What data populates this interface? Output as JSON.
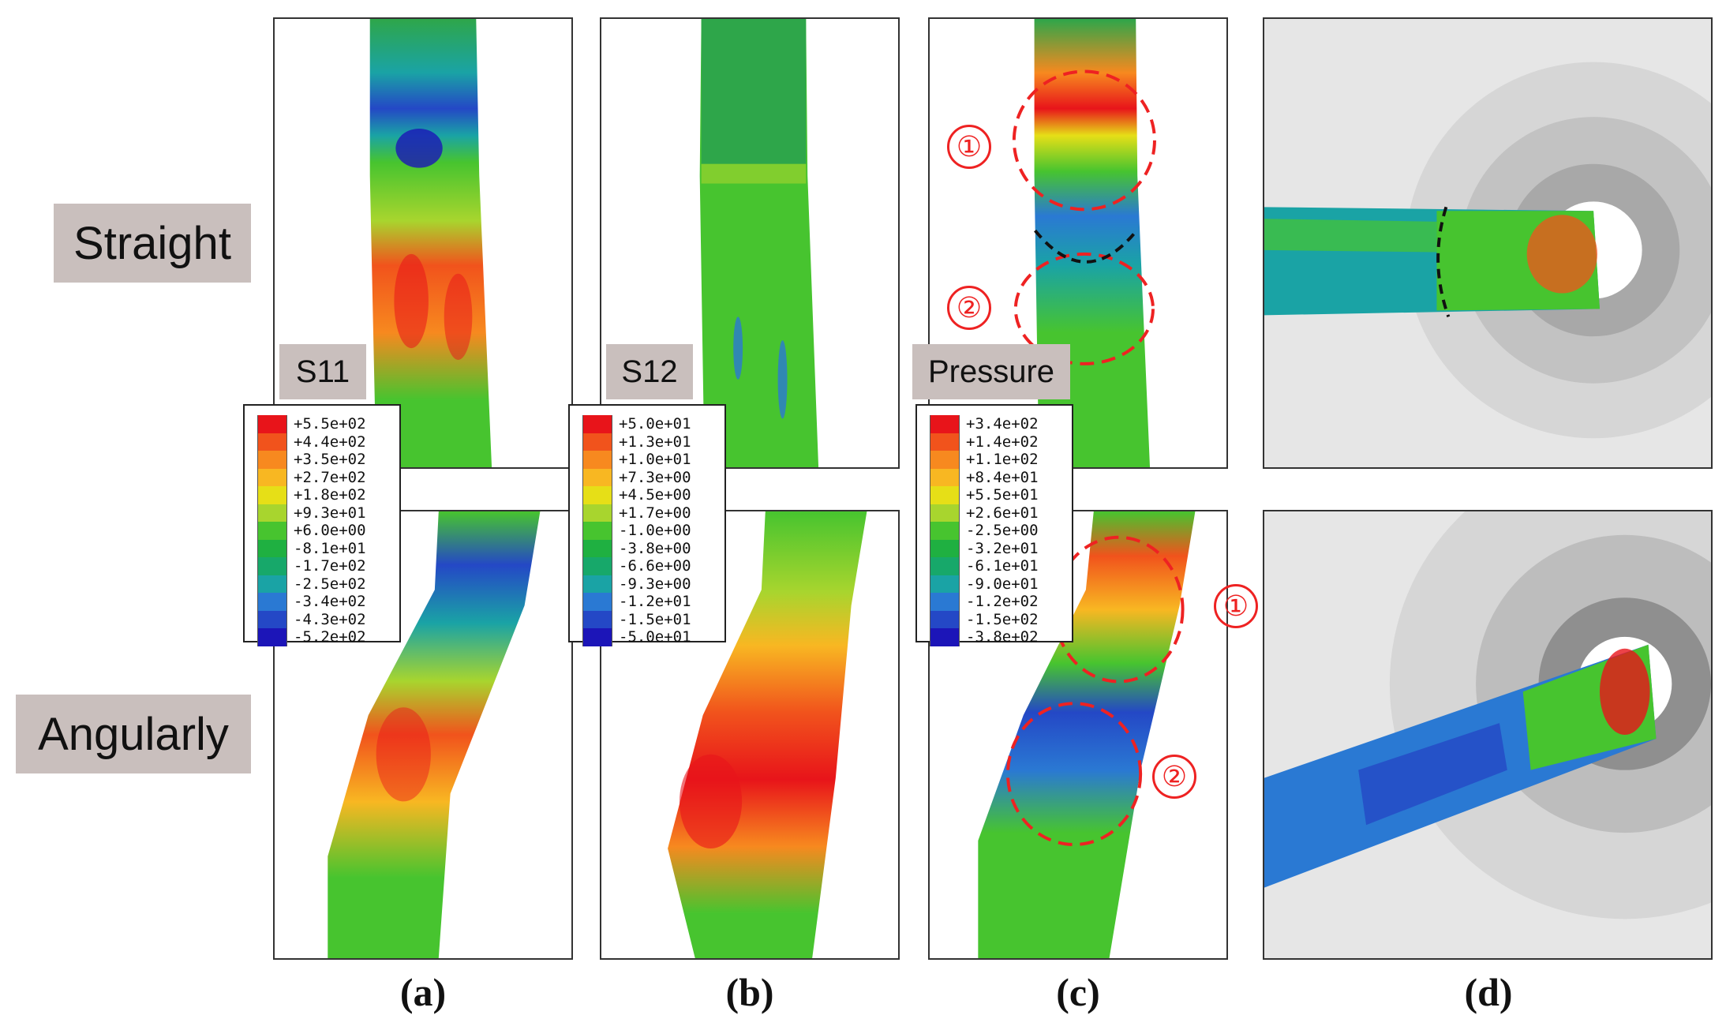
{
  "row_labels": {
    "straight": "Straight",
    "angular": "Angularly"
  },
  "sub_labels": {
    "a": "(a)",
    "b": "(b)",
    "c": "(c)",
    "d": "(d)"
  },
  "legends": {
    "s11": {
      "title": "S11",
      "values": [
        "+5.5e+02",
        "+4.4e+02",
        "+3.5e+02",
        "+2.7e+02",
        "+1.8e+02",
        "+9.3e+01",
        "+6.0e+00",
        "-8.1e+01",
        "-1.7e+02",
        "-2.5e+02",
        "-3.4e+02",
        "-4.3e+02",
        "-5.2e+02"
      ]
    },
    "s12": {
      "title": "S12",
      "values": [
        "+5.0e+01",
        "+1.3e+01",
        "+1.0e+01",
        "+7.3e+00",
        "+4.5e+00",
        "+1.7e+00",
        "-1.0e+00",
        "-3.8e+00",
        "-6.6e+00",
        "-9.3e+00",
        "-1.2e+01",
        "-1.5e+01",
        "-5.0e+01"
      ]
    },
    "pressure": {
      "title": "Pressure",
      "values": [
        "+3.4e+02",
        "+1.4e+02",
        "+1.1e+02",
        "+8.4e+01",
        "+5.5e+01",
        "+2.6e+01",
        "-2.5e+00",
        "-3.2e+01",
        "-6.1e+01",
        "-9.0e+01",
        "-1.2e+02",
        "-1.5e+02",
        "-3.8e+02"
      ]
    }
  },
  "colorscale": [
    "#e8141a",
    "#f1531c",
    "#f7891f",
    "#f8b722",
    "#e6df17",
    "#a8d52e",
    "#47c42f",
    "#1fb041",
    "#17a86a",
    "#1aa3a5",
    "#2a79d3",
    "#2448c6",
    "#1c15b8"
  ],
  "markers": {
    "one": "①",
    "two": "②"
  }
}
